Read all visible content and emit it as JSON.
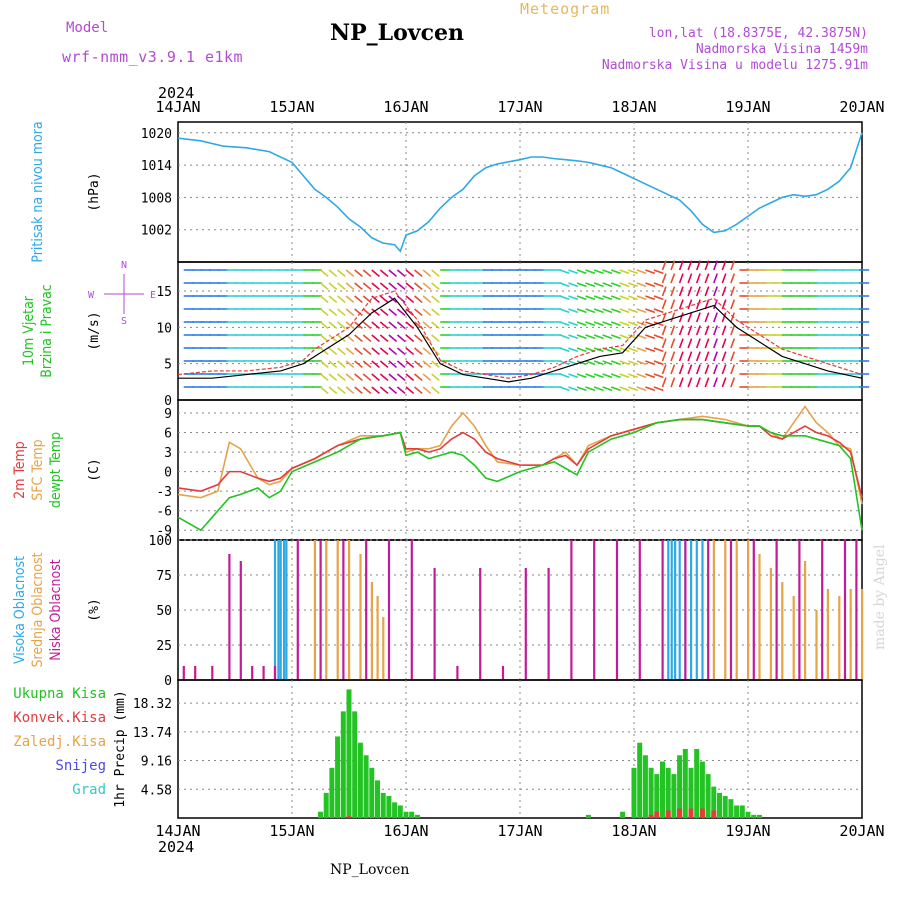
{
  "header": {
    "model_label": "Model",
    "model_name": "wrf-nmm_v3.9.1 e1km",
    "title": "NP_Lovcen",
    "meteogram_label": "Meteogram",
    "lonlat": "lon,lat (18.8375E, 42.3875N)",
    "elevation": "Nadmorska Visina 1459m",
    "model_elevation": "Nadmorska Visina u modelu 1275.91m",
    "year_top": "2024",
    "year_bottom": "2024",
    "footer": "NP_Lovcen",
    "watermark": "made by Angel"
  },
  "colors": {
    "pressure": "#2fa8e6",
    "green": "#22c322",
    "red": "#e53b3b",
    "orange": "#e6a347",
    "blue": "#4b4be6",
    "cyan": "#36c8c8",
    "magenta": "#c21b9a",
    "purple": "#b24bd6"
  },
  "chart_data": [
    {
      "type": "line",
      "panel": "pressure",
      "ylabel_lines": [
        "Pritisak na nivou mora"
      ],
      "unit": "(hPa)",
      "ylim": [
        996,
        1022
      ],
      "yticks": [
        "1020",
        "1014",
        "1008",
        "1002"
      ],
      "ytick_values": [
        1020,
        1014,
        1008,
        1002
      ],
      "xticks": [
        "14JAN",
        "15JAN",
        "16JAN",
        "17JAN",
        "18JAN",
        "19JAN",
        "20JAN"
      ],
      "grid": true,
      "series": [
        {
          "color": "pressure",
          "x": [
            0,
            0.2,
            0.4,
            0.6,
            0.8,
            1.0,
            1.1,
            1.2,
            1.3,
            1.4,
            1.5,
            1.6,
            1.7,
            1.8,
            1.9,
            1.95,
            2.0,
            2.1,
            2.2,
            2.3,
            2.4,
            2.5,
            2.6,
            2.7,
            2.8,
            2.9,
            3.0,
            3.1,
            3.2,
            3.3,
            3.4,
            3.5,
            3.6,
            3.7,
            3.8,
            3.9,
            4.0,
            4.1,
            4.2,
            4.3,
            4.4,
            4.5,
            4.6,
            4.7,
            4.8,
            4.9,
            5.0,
            5.1,
            5.2,
            5.3,
            5.4,
            5.5,
            5.6,
            5.7,
            5.8,
            5.9,
            6.0
          ],
          "values": [
            1019,
            1018.5,
            1017.5,
            1017.2,
            1016.5,
            1014.5,
            1012.0,
            1009.5,
            1008.0,
            1006.2,
            1004.0,
            1002.5,
            1000.5,
            999.5,
            999.2,
            998.0,
            1001.0,
            1001.8,
            1003.5,
            1006.0,
            1008.0,
            1009.5,
            1012.0,
            1013.5,
            1014.2,
            1014.6,
            1015.0,
            1015.5,
            1015.5,
            1015.2,
            1015.0,
            1014.8,
            1014.5,
            1014.0,
            1013.5,
            1012.5,
            1011.5,
            1010.5,
            1009.5,
            1008.5,
            1007.5,
            1005.5,
            1003.0,
            1001.5,
            1001.8,
            1003.0,
            1004.5,
            1006.0,
            1007.0,
            1008.0,
            1008.5,
            1008.2,
            1008.5,
            1009.5,
            1011.0,
            1013.5,
            1020.0
          ]
        }
      ]
    },
    {
      "type": "barbs-line",
      "panel": "wind",
      "ylabel_lines": [
        "10m Vjetar",
        "Brzina i Pravac"
      ],
      "unit": "(m/s)",
      "ylim": [
        0,
        19
      ],
      "yticks": [
        "15",
        "10",
        "5",
        "0"
      ],
      "ytick_values": [
        15,
        10,
        5,
        0
      ],
      "compass": [
        "N",
        "S",
        "W",
        "E"
      ],
      "grid": true,
      "speed": {
        "color": "black",
        "x": [
          0,
          0.3,
          0.6,
          0.9,
          1.1,
          1.2,
          1.3,
          1.5,
          1.7,
          1.9,
          2.1,
          2.3,
          2.5,
          2.7,
          2.9,
          3.1,
          3.3,
          3.5,
          3.7,
          3.9,
          4.1,
          4.3,
          4.5,
          4.7,
          4.9,
          5.1,
          5.3,
          5.5,
          5.7,
          6.0
        ],
        "values": [
          3,
          3,
          3.5,
          4,
          5,
          6,
          7,
          9,
          12,
          14,
          10,
          5,
          3.5,
          3,
          2.5,
          3,
          4,
          5,
          6,
          6.5,
          10,
          11,
          12,
          13,
          10,
          8,
          6,
          5,
          4,
          3
        ]
      },
      "gust": {
        "color": "red",
        "x": [
          0,
          0.3,
          0.6,
          0.9,
          1.1,
          1.2,
          1.3,
          1.5,
          1.7,
          1.9,
          2.1,
          2.3,
          2.5,
          2.7,
          2.9,
          3.1,
          3.3,
          3.5,
          3.7,
          3.9,
          4.1,
          4.3,
          4.5,
          4.7,
          4.9,
          5.1,
          5.3,
          5.5,
          5.7,
          6.0
        ],
        "values": [
          3.5,
          4,
          4,
          4.5,
          5.5,
          7,
          8,
          10,
          14,
          15,
          11,
          5.5,
          4,
          3.5,
          3,
          3.5,
          4.5,
          6,
          7,
          7.5,
          11,
          12,
          13,
          14,
          11,
          9,
          7,
          6,
          5,
          3.5
        ]
      },
      "arrow_colors_by_speed": [
        "#3333ff",
        "#2a7de6",
        "#2bd1d1",
        "#2bd12b",
        "#c8d12b",
        "#e6a347",
        "#e64b2b",
        "#e6004b",
        "#b200b2"
      ]
    },
    {
      "type": "line",
      "panel": "temperature",
      "ylabel_lines": [
        "2m Temp",
        "SFC Temp",
        "dewpt Temp"
      ],
      "unit": "(C)",
      "ylim": [
        -10.5,
        11
      ],
      "yticks": [
        "9",
        "6",
        "3",
        "0",
        "-3",
        "-6",
        "-9"
      ],
      "ytick_values": [
        9,
        6,
        3,
        0,
        -3,
        -6,
        -9
      ],
      "grid": true,
      "series": [
        {
          "color": "orange",
          "x": [
            0,
            0.2,
            0.35,
            0.45,
            0.55,
            0.7,
            0.8,
            0.9,
            1.0,
            1.2,
            1.4,
            1.6,
            1.8,
            1.95,
            2.0,
            2.1,
            2.2,
            2.3,
            2.4,
            2.5,
            2.6,
            2.7,
            2.8,
            3.0,
            3.2,
            3.3,
            3.4,
            3.5,
            3.6,
            3.8,
            4.0,
            4.2,
            4.4,
            4.6,
            4.8,
            5.0,
            5.1,
            5.2,
            5.3,
            5.4,
            5.5,
            5.6,
            5.7,
            5.8,
            5.9,
            6.0
          ],
          "values": [
            -3.5,
            -4,
            -3,
            4.5,
            3.5,
            -1,
            -2,
            -1.5,
            0.5,
            2,
            4,
            5.5,
            5.5,
            6,
            3.0,
            3.5,
            3.5,
            4,
            7,
            9,
            7,
            4,
            1.5,
            1,
            1,
            2,
            3,
            1,
            4,
            5.5,
            6.5,
            7.5,
            8,
            8.5,
            8,
            7,
            7,
            6,
            5,
            7.5,
            10,
            7.5,
            6,
            4,
            3.5,
            -5
          ]
        },
        {
          "color": "red",
          "x": [
            0,
            0.2,
            0.35,
            0.45,
            0.55,
            0.7,
            0.8,
            0.9,
            1.0,
            1.2,
            1.4,
            1.6,
            1.8,
            1.95,
            2.0,
            2.1,
            2.2,
            2.3,
            2.4,
            2.5,
            2.6,
            2.7,
            2.8,
            3.0,
            3.2,
            3.3,
            3.4,
            3.5,
            3.6,
            3.8,
            4.0,
            4.2,
            4.4,
            4.6,
            4.8,
            5.0,
            5.1,
            5.2,
            5.3,
            5.4,
            5.5,
            5.6,
            5.7,
            5.8,
            5.9,
            6.0
          ],
          "values": [
            -2.5,
            -3,
            -2,
            0,
            0,
            -1,
            -1.5,
            -1,
            0.5,
            2,
            4,
            5,
            5.5,
            6,
            3.5,
            3.5,
            3,
            3.5,
            5,
            6,
            5,
            3,
            2,
            1,
            1,
            2,
            2.5,
            1,
            3.5,
            5.5,
            6.5,
            7.5,
            8,
            8,
            7.5,
            7,
            7,
            5.5,
            5,
            6,
            7,
            6,
            5.5,
            4.5,
            3,
            -4
          ]
        },
        {
          "color": "green",
          "x": [
            0,
            0.2,
            0.35,
            0.45,
            0.55,
            0.7,
            0.8,
            0.9,
            1.0,
            1.2,
            1.4,
            1.6,
            1.8,
            1.95,
            2.0,
            2.1,
            2.2,
            2.3,
            2.4,
            2.5,
            2.6,
            2.7,
            2.8,
            3.0,
            3.2,
            3.3,
            3.4,
            3.5,
            3.6,
            3.8,
            4.0,
            4.2,
            4.4,
            4.6,
            4.8,
            5.0,
            5.1,
            5.2,
            5.3,
            5.4,
            5.5,
            5.6,
            5.7,
            5.8,
            5.9,
            6.0
          ],
          "values": [
            -7,
            -9,
            -6,
            -4,
            -3.5,
            -2.5,
            -4,
            -3,
            0,
            1.5,
            3,
            5,
            5.5,
            6,
            2.5,
            3,
            2,
            2.5,
            3,
            2.5,
            1,
            -1,
            -1.5,
            0,
            1,
            1.5,
            0.5,
            -0.5,
            3,
            5,
            6,
            7.5,
            8,
            8,
            7.5,
            7,
            7,
            6,
            5.5,
            5.5,
            5.5,
            5,
            4.5,
            4,
            2,
            -9
          ]
        }
      ]
    },
    {
      "type": "bar",
      "panel": "clouds",
      "ylabel_lines": [
        "Visoka Oblacnost",
        "Srednja Oblacnost",
        "Niska Oblacnost"
      ],
      "unit": "(%)",
      "ylim": [
        0,
        100
      ],
      "yticks": [
        "100",
        "75",
        "50",
        "25",
        "0"
      ],
      "ytick_values": [
        100,
        75,
        50,
        25,
        0
      ],
      "grid": true,
      "series": [
        {
          "name_color": "cyan",
          "color": "#2fa8e6",
          "x": [
            0.85,
            0.88,
            0.9,
            0.93,
            0.95,
            4.3,
            4.33,
            4.36,
            4.4,
            4.45,
            4.5,
            4.55,
            4.6
          ],
          "values": [
            100,
            100,
            100,
            100,
            100,
            100,
            100,
            100,
            100,
            100,
            100,
            100,
            100
          ]
        },
        {
          "name_color": "orange",
          "color": "#e6a347",
          "x": [
            1.2,
            1.3,
            1.4,
            1.5,
            1.6,
            1.7,
            1.75,
            1.8,
            4.7,
            4.8,
            4.9,
            5.0,
            5.1,
            5.2,
            5.3,
            5.4,
            5.5,
            5.6,
            5.7,
            5.8,
            5.9,
            6.0
          ],
          "values": [
            100,
            100,
            100,
            100,
            90,
            70,
            60,
            45,
            100,
            100,
            100,
            100,
            90,
            80,
            70,
            60,
            85,
            50,
            65,
            60,
            65,
            65
          ]
        },
        {
          "name_color": "magenta",
          "color": "#c21b9a",
          "x": [
            0.05,
            0.15,
            0.3,
            0.45,
            0.55,
            0.65,
            0.75,
            0.85,
            1.05,
            1.25,
            1.45,
            1.65,
            1.85,
            2.05,
            2.25,
            2.45,
            2.65,
            2.85,
            3.05,
            3.25,
            3.45,
            3.65,
            3.85,
            4.05,
            4.25,
            4.45,
            4.65,
            4.85,
            5.05,
            5.25,
            5.45,
            5.65,
            5.85,
            5.95
          ],
          "values": [
            10,
            10,
            10,
            90,
            85,
            10,
            10,
            10,
            100,
            100,
            100,
            100,
            100,
            100,
            80,
            10,
            80,
            10,
            80,
            80,
            100,
            100,
            100,
            100,
            100,
            100,
            100,
            100,
            100,
            100,
            100,
            100,
            100,
            100
          ]
        }
      ]
    },
    {
      "type": "bar",
      "panel": "precipitation",
      "ylabel_lines": [
        "1hr Precip (mm)"
      ],
      "legend": [
        "Ukupna Kisa",
        "Konvek.Kisa",
        "Zaledj.Kisa",
        "Snijeg",
        "Grad"
      ],
      "legend_colors": [
        "green",
        "red",
        "orange",
        "blue",
        "cyan"
      ],
      "ylim": [
        0,
        22
      ],
      "yticks": [
        "18.32",
        "13.74",
        "9.16",
        "4.58"
      ],
      "ytick_values": [
        18.32,
        13.74,
        9.16,
        4.58
      ],
      "xticks_bottom": [
        "14JAN",
        "15JAN",
        "16JAN",
        "17JAN",
        "18JAN",
        "19JAN",
        "20JAN"
      ],
      "grid": true,
      "series": [
        {
          "color": "green",
          "x": [
            1.25,
            1.3,
            1.35,
            1.4,
            1.45,
            1.5,
            1.55,
            1.6,
            1.65,
            1.7,
            1.75,
            1.8,
            1.85,
            1.9,
            1.95,
            2.0,
            2.05,
            2.1,
            3.6,
            3.9,
            4.0,
            4.05,
            4.1,
            4.15,
            4.2,
            4.25,
            4.3,
            4.35,
            4.4,
            4.45,
            4.5,
            4.55,
            4.6,
            4.65,
            4.7,
            4.75,
            4.8,
            4.85,
            4.9,
            4.95,
            5.0,
            5.05,
            5.1
          ],
          "values": [
            1,
            4,
            8,
            13,
            17,
            20.5,
            17,
            12,
            10,
            8,
            6,
            4,
            3.5,
            2.5,
            2,
            1,
            1,
            0.5,
            0.5,
            1,
            8,
            12,
            10,
            8,
            7,
            9,
            8,
            7,
            10,
            11,
            8,
            11,
            9,
            7,
            5,
            4,
            3.5,
            3,
            2,
            2,
            1,
            0.5,
            0.5
          ]
        },
        {
          "color": "red",
          "x": [
            1.5,
            4.15,
            4.2,
            4.3,
            4.4,
            4.5,
            4.6,
            4.7
          ],
          "values": [
            0.3,
            0.5,
            1,
            1.2,
            1.5,
            1.5,
            1.5,
            1.2
          ]
        }
      ]
    }
  ]
}
